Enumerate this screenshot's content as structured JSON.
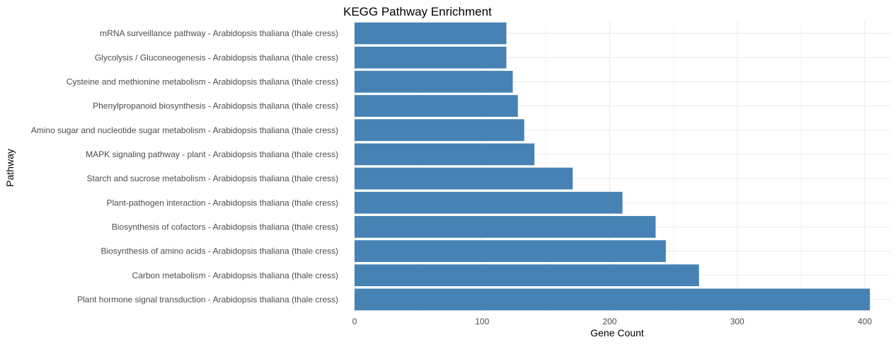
{
  "colors": {
    "bar": "#4682B4",
    "grid_major": "#ebebeb",
    "grid_minor": "#f4f4f4",
    "background": "#ffffff"
  },
  "chart_data": {
    "type": "bar",
    "orientation": "horizontal",
    "title": "KEGG Pathway Enrichment",
    "xlabel": "Gene Count",
    "ylabel": "Pathway",
    "xlim": [
      0,
      420
    ],
    "x_ticks": [
      0,
      100,
      200,
      300,
      400
    ],
    "grid": true,
    "categories": [
      "mRNA surveillance pathway - Arabidopsis thaliana (thale cress)",
      "Glycolysis / Gluconeogenesis - Arabidopsis thaliana (thale cress)",
      "Cysteine and methionine metabolism - Arabidopsis thaliana (thale cress)",
      "Phenylpropanoid biosynthesis - Arabidopsis thaliana (thale cress)",
      "Amino sugar and nucleotide sugar metabolism - Arabidopsis thaliana (thale cress)",
      "MAPK signaling pathway - plant - Arabidopsis thaliana (thale cress)",
      "Starch and sucrose metabolism - Arabidopsis thaliana (thale cress)",
      "Plant-pathogen interaction - Arabidopsis thaliana (thale cress)",
      "Biosynthesis of cofactors - Arabidopsis thaliana (thale cress)",
      "Biosynthesis of amino acids - Arabidopsis thaliana (thale cress)",
      "Carbon metabolism - Arabidopsis thaliana (thale cress)",
      "Plant hormone signal transduction - Arabidopsis thaliana (thale cress)"
    ],
    "values": [
      119,
      119,
      124,
      128,
      133,
      141,
      171,
      210,
      236,
      244,
      270,
      404
    ]
  }
}
